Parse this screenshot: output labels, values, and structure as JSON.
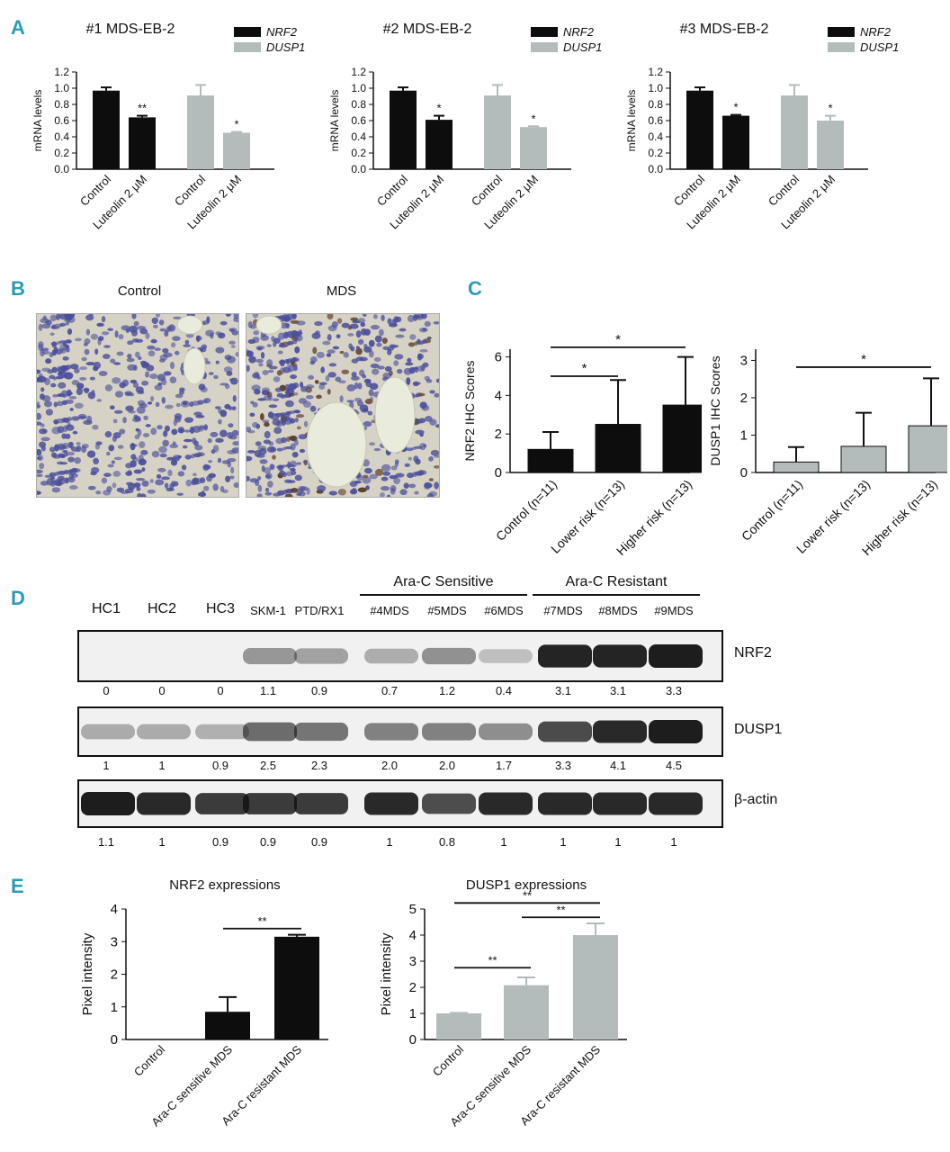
{
  "panels": {
    "a": "A",
    "b": "B",
    "c": "C",
    "d": "D",
    "e": "E"
  },
  "panelA": {
    "ylabel": "mRNA levels",
    "yticks": [
      "0.0",
      "0.2",
      "0.4",
      "0.6",
      "0.8",
      "1.0",
      "1.2"
    ],
    "categories": [
      "Control",
      "Luteolin 2 μM",
      "Control",
      "Luteolin 2 μM"
    ],
    "legend": [
      "NRF2",
      "DUSP1"
    ],
    "colors": {
      "nrf2": "#0d0d0d",
      "dusp1": "#b3bcbb"
    },
    "charts": [
      {
        "title": "#1 MDS-EB-2",
        "values": [
          0.97,
          0.64,
          0.91,
          0.45
        ],
        "errors": [
          0.04,
          0.02,
          0.13,
          0.01
        ],
        "stars": [
          "",
          "**",
          "",
          "*"
        ]
      },
      {
        "title": "#2 MDS-EB-2",
        "values": [
          0.97,
          0.61,
          0.91,
          0.52
        ],
        "errors": [
          0.04,
          0.05,
          0.13,
          0.01
        ],
        "stars": [
          "",
          "*",
          "",
          "*"
        ]
      },
      {
        "title": "#3 MDS-EB-2",
        "values": [
          0.97,
          0.66,
          0.91,
          0.6
        ],
        "errors": [
          0.04,
          0.01,
          0.13,
          0.06
        ],
        "stars": [
          "",
          "*",
          "",
          "*"
        ]
      }
    ]
  },
  "panelB": {
    "left": "Control",
    "right": "MDS"
  },
  "panelC": {
    "categories": [
      "Control (n=11)",
      "Lower risk (n=13)",
      "Higher risk (n=13)"
    ],
    "charts": [
      {
        "ylabel": "NRF2 IHC Scores",
        "yticks": [
          "0",
          "2",
          "4",
          "6"
        ],
        "ymax": 6.4,
        "color": "#0d0d0d",
        "values": [
          1.2,
          2.5,
          3.5
        ],
        "errors": [
          0.9,
          2.3,
          2.5
        ],
        "sig": [
          {
            "from": 0,
            "to": 1,
            "y": 5.0,
            "star": "*"
          },
          {
            "from": 0,
            "to": 2,
            "y": 6.5,
            "star": "*"
          }
        ]
      },
      {
        "ylabel": "DUSP1 IHC Scores",
        "yticks": [
          "0",
          "1",
          "2",
          "3"
        ],
        "ymax": 3.3,
        "color": "#b3bcbb",
        "values": [
          0.28,
          0.7,
          1.25
        ],
        "errors": [
          0.4,
          0.9,
          1.27
        ],
        "sig": [
          {
            "from": 0,
            "to": 2,
            "y": 2.82,
            "star": "*"
          }
        ]
      }
    ]
  },
  "panelD": {
    "groupSensitive": "Ara-C Sensitive",
    "groupResistant": "Ara-C Resistant",
    "lanes": [
      "HC1",
      "HC2",
      "HC3",
      "SKM-1",
      "PTD/RX1",
      "#4MDS",
      "#5MDS",
      "#6MDS",
      "#7MDS",
      "#8MDS",
      "#9MDS"
    ],
    "rows": [
      {
        "label": "NRF2",
        "values": [
          "0",
          "0",
          "0",
          "1.1",
          "0.9",
          "0.7",
          "1.2",
          "0.4",
          "3.1",
          "3.1",
          "3.3"
        ],
        "levels": [
          0,
          0,
          0,
          1.1,
          0.9,
          0.7,
          1.2,
          0.4,
          3.1,
          3.1,
          3.3
        ],
        "max": 3.3
      },
      {
        "label": "DUSP1",
        "values": [
          "1",
          "1",
          "0.9",
          "2.5",
          "2.3",
          "2.0",
          "2.0",
          "1.7",
          "3.3",
          "4.1",
          "4.5"
        ],
        "levels": [
          1,
          1,
          0.9,
          2.5,
          2.3,
          2.0,
          2.0,
          1.7,
          3.3,
          4.1,
          4.5
        ],
        "max": 4.5
      },
      {
        "label": "β-actin",
        "values": [
          "1.1",
          "1",
          "0.9",
          "0.9",
          "0.9",
          "1",
          "0.8",
          "1",
          "1",
          "1",
          "1"
        ],
        "levels": [
          1.1,
          1,
          0.9,
          0.9,
          0.9,
          1,
          0.8,
          1,
          1,
          1,
          1
        ],
        "max": 1.1
      }
    ]
  },
  "panelE": {
    "ylabel": "Pixel intensity",
    "categories": [
      "Control",
      "Ara-C sensitive MDS",
      "Ara-C resistant MDS"
    ],
    "charts": [
      {
        "title": "NRF2 expressions",
        "yticks": [
          "0",
          "1",
          "2",
          "3",
          "4"
        ],
        "ymax": 4,
        "color": "#0d0d0d",
        "values": [
          0.0,
          0.85,
          3.15
        ],
        "errors": [
          0,
          0.45,
          0.06
        ],
        "sig": [
          {
            "from": 1,
            "to": 2,
            "y": 3.4,
            "star": "**"
          }
        ]
      },
      {
        "title": "DUSP1 expressions",
        "yticks": [
          "0",
          "1",
          "2",
          "3",
          "4",
          "5"
        ],
        "ymax": 5,
        "color": "#b3bcbb",
        "values": [
          1.0,
          2.08,
          4.0
        ],
        "errors": [
          0.02,
          0.3,
          0.45
        ],
        "sig": [
          {
            "from": 0,
            "to": 1,
            "y": 2.75,
            "star": "**"
          },
          {
            "from": 1,
            "to": 2,
            "y": 4.68,
            "star": "**"
          },
          {
            "from": 0,
            "to": 2,
            "y": 5.23,
            "star": "**"
          }
        ]
      }
    ]
  }
}
